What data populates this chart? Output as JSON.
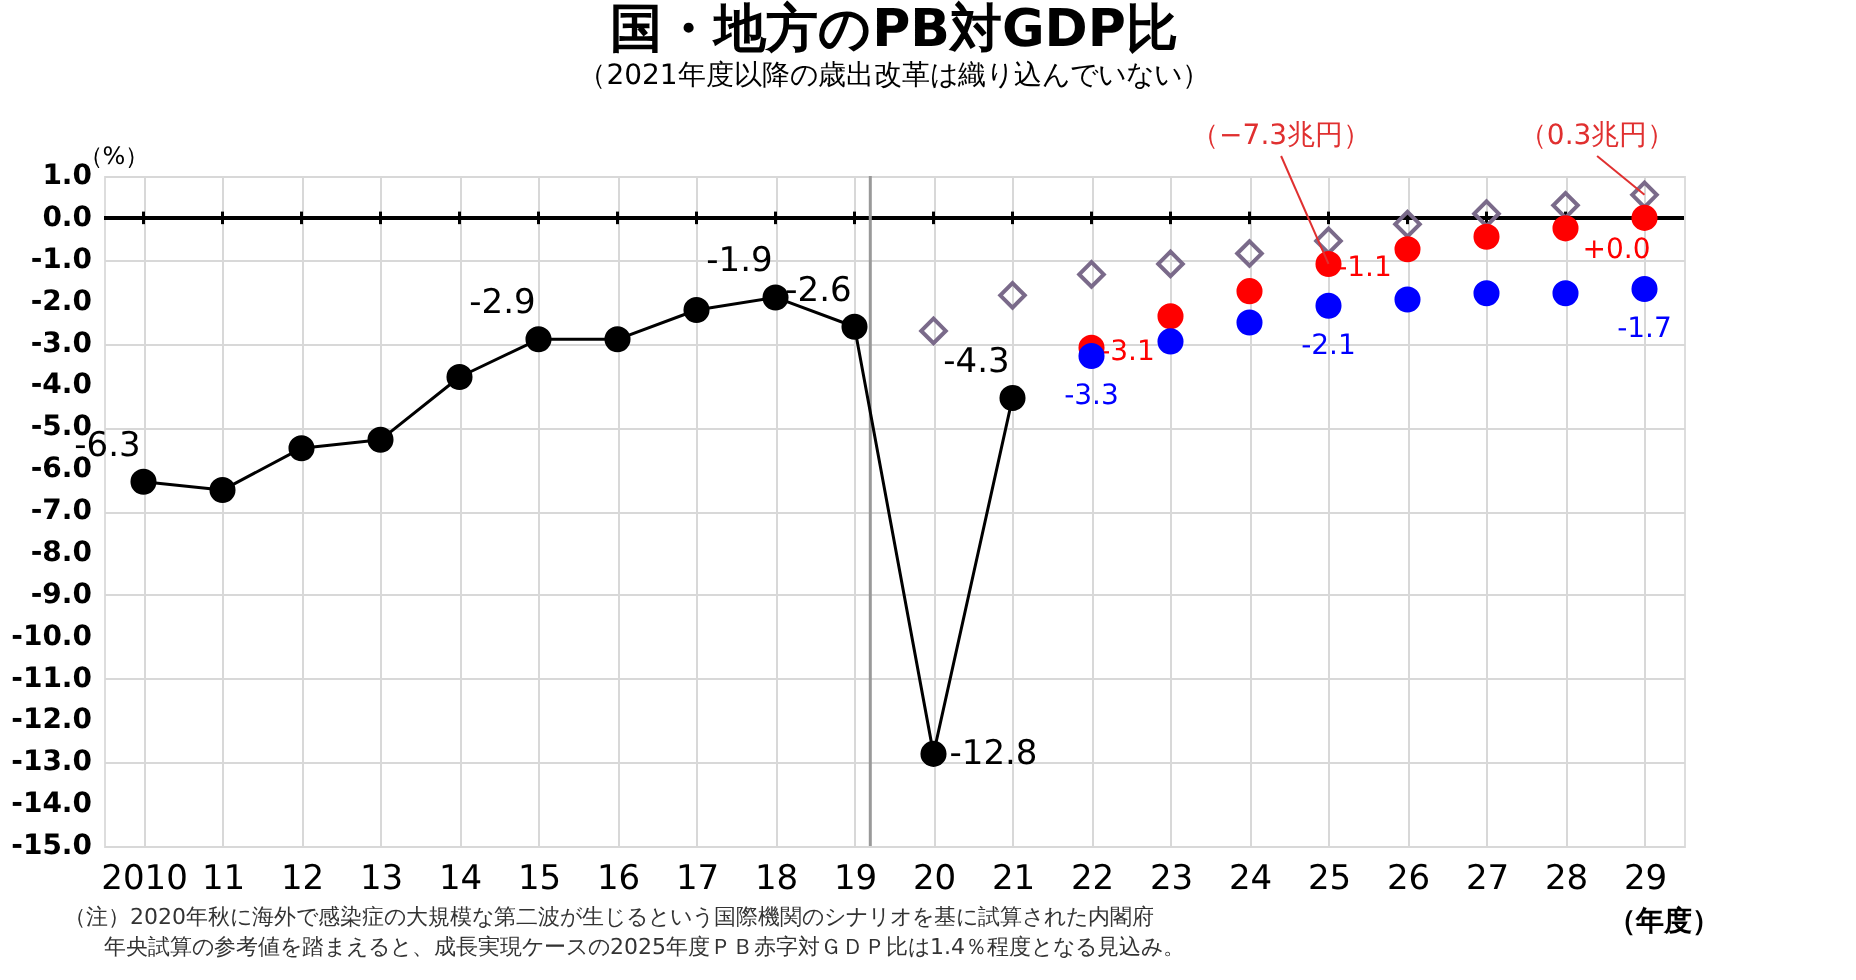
{
  "chart_data": {
    "type": "line",
    "title": "国・地方のPB対GDP比",
    "subtitle": "（2021年度以降の歳出改革は織り込んでいない）",
    "ylabel": "（%）",
    "xlabel": "（年度）",
    "xlim": [
      2009.5,
      2029.5
    ],
    "xticks": [
      {
        "value": 2010,
        "label": "2010"
      },
      {
        "value": 2011,
        "label": "11"
      },
      {
        "value": 2012,
        "label": "12"
      },
      {
        "value": 2013,
        "label": "13"
      },
      {
        "value": 2014,
        "label": "14"
      },
      {
        "value": 2015,
        "label": "15"
      },
      {
        "value": 2016,
        "label": "16"
      },
      {
        "value": 2017,
        "label": "17"
      },
      {
        "value": 2018,
        "label": "18"
      },
      {
        "value": 2019,
        "label": "19"
      },
      {
        "value": 2020,
        "label": "20"
      },
      {
        "value": 2021,
        "label": "21"
      },
      {
        "value": 2022,
        "label": "22"
      },
      {
        "value": 2023,
        "label": "23"
      },
      {
        "value": 2024,
        "label": "24"
      },
      {
        "value": 2025,
        "label": "25"
      },
      {
        "value": 2026,
        "label": "26"
      },
      {
        "value": 2027,
        "label": "27"
      },
      {
        "value": 2028,
        "label": "28"
      },
      {
        "value": 2029,
        "label": "29"
      }
    ],
    "ylim": [
      -15,
      1
    ],
    "yticks": [
      {
        "value": 1,
        "label": "1.0"
      },
      {
        "value": 0,
        "label": "0.0"
      },
      {
        "value": -1,
        "label": "-1.0"
      },
      {
        "value": -2,
        "label": "-2.0"
      },
      {
        "value": -3,
        "label": "-3.0"
      },
      {
        "value": -4,
        "label": "-4.0"
      },
      {
        "value": -5,
        "label": "-5.0"
      },
      {
        "value": -6,
        "label": "-6.0"
      },
      {
        "value": -7,
        "label": "-7.0"
      },
      {
        "value": -8,
        "label": "-8.0"
      },
      {
        "value": -9,
        "label": "-9.0"
      },
      {
        "value": -10,
        "label": "-10.0"
      },
      {
        "value": -11,
        "label": "-11.0"
      },
      {
        "value": -12,
        "label": "-12.0"
      },
      {
        "value": -13,
        "label": "-13.0"
      },
      {
        "value": -14,
        "label": "-14.0"
      },
      {
        "value": -15,
        "label": "-15.0"
      }
    ],
    "grid": true,
    "series": [
      {
        "type": "line",
        "marker": "circle",
        "color": "#000000",
        "x": [
          2010,
          2011,
          2012,
          2013,
          2014,
          2015,
          2016,
          2017,
          2018,
          2019,
          2020,
          2021
        ],
        "values": [
          -6.3,
          -6.5,
          -5.5,
          -5.3,
          -3.8,
          -2.9,
          -2.9,
          -2.2,
          -1.9,
          -2.6,
          -12.8,
          -4.3
        ],
        "value_labels": [
          "-6.3",
          null,
          null,
          null,
          null,
          "-2.9",
          null,
          null,
          "-1.9",
          "-2.6",
          "-12.8",
          "-4.3"
        ]
      },
      {
        "type": "scatter",
        "marker": "diamond",
        "color": "#7a6a8a",
        "x": [
          2020,
          2021,
          2022,
          2023,
          2024,
          2025,
          2026,
          2027,
          2028,
          2029
        ],
        "values": [
          -2.7,
          -1.85,
          -1.35,
          -1.1,
          -0.85,
          -0.55,
          -0.15,
          0.1,
          0.3,
          0.55
        ]
      },
      {
        "type": "scatter",
        "marker": "circle",
        "color": "#ff0000",
        "x": [
          2022,
          2023,
          2024,
          2025,
          2026,
          2027,
          2028,
          2029
        ],
        "values": [
          -3.1,
          -2.35,
          -1.75,
          -1.1,
          -0.75,
          -0.45,
          -0.25,
          0.0
        ],
        "value_labels": [
          "-3.1",
          null,
          null,
          "-1.1",
          null,
          null,
          null,
          "+0.0"
        ]
      },
      {
        "type": "scatter",
        "marker": "circle",
        "color": "#0000ff",
        "x": [
          2022,
          2023,
          2024,
          2025,
          2026,
          2027,
          2028,
          2029
        ],
        "values": [
          -3.3,
          -2.95,
          -2.5,
          -2.1,
          -1.95,
          -1.8,
          -1.8,
          -1.7
        ],
        "value_labels": [
          "-3.3",
          null,
          null,
          "-2.1",
          null,
          null,
          null,
          "-1.7"
        ]
      }
    ],
    "ref_lines": [
      {
        "axis": "x",
        "value": 2019.2,
        "color": "#999999"
      }
    ],
    "annotations": [
      {
        "text": "（−7.3兆円）",
        "x": 2025,
        "y": -1.1
      },
      {
        "text": "（0.3兆円）",
        "x": 2029,
        "y": 0.55
      },
      "（注）2020年秋に海外で感染症の大規模な第二波が生じるという国際機関のシナリオを基に試算された内閣府",
      "年央試算の参考値を踏まえると、成長実現ケースの2025年度ＰＢ赤字対ＧＤＰ比は1.4％程度となる見込み。"
    ]
  }
}
